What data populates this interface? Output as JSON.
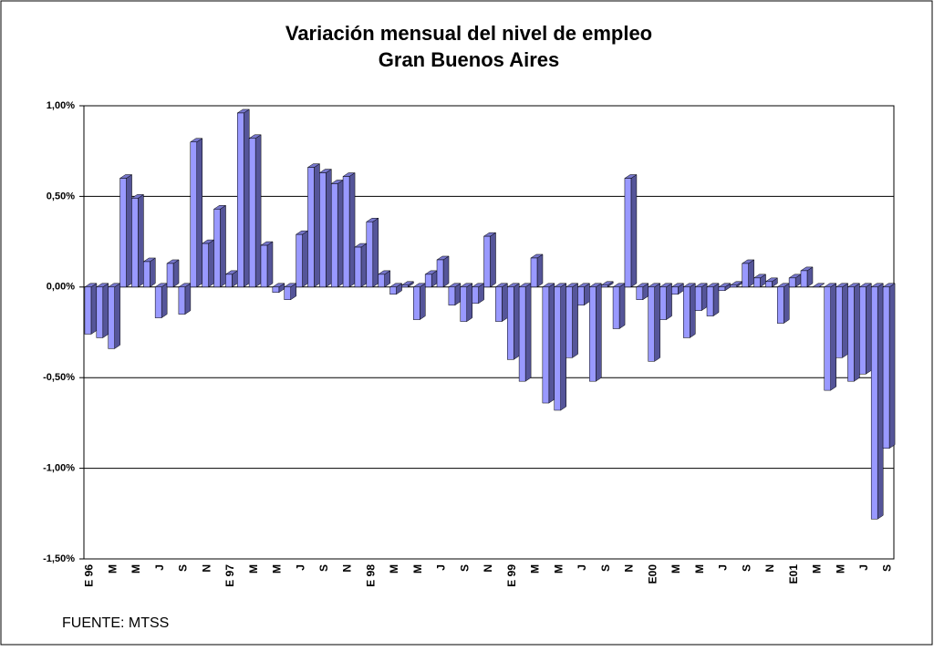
{
  "chart_data": {
    "type": "bar",
    "title": "Variación mensual del nivel de empleo",
    "subtitle": "Gran Buenos Aires",
    "source": "FUENTE: MTSS",
    "categories": [
      "E 96",
      null,
      "M",
      null,
      "M",
      null,
      "J",
      null,
      "S",
      null,
      "N",
      null,
      "E 97",
      null,
      "M",
      null,
      "M",
      null,
      "J",
      null,
      "S",
      null,
      "N",
      null,
      "E 98",
      null,
      "M",
      null,
      "M",
      null,
      "J",
      null,
      "S",
      null,
      "N",
      null,
      "E 99",
      null,
      "M",
      null,
      "M",
      null,
      "J",
      null,
      "S",
      null,
      "N",
      null,
      "E00",
      null,
      "M",
      null,
      "M",
      null,
      "J",
      null,
      "S",
      null,
      "N",
      null,
      "E01",
      null,
      "M",
      null,
      "M",
      null,
      "J",
      null,
      "S"
    ],
    "values": [
      -0.26,
      -0.28,
      -0.34,
      0.6,
      0.49,
      0.14,
      -0.17,
      0.13,
      -0.15,
      0.8,
      0.24,
      0.43,
      0.07,
      0.96,
      0.82,
      0.23,
      -0.03,
      -0.07,
      0.29,
      0.66,
      0.63,
      0.57,
      0.61,
      0.22,
      0.36,
      0.07,
      -0.04,
      0.01,
      -0.18,
      0.07,
      0.15,
      -0.1,
      -0.19,
      -0.09,
      0.28,
      -0.19,
      -0.4,
      -0.52,
      0.16,
      -0.64,
      -0.68,
      -0.39,
      -0.1,
      -0.52,
      0.01,
      -0.23,
      0.6,
      -0.07,
      -0.41,
      -0.18,
      -0.04,
      -0.28,
      -0.13,
      -0.16,
      -0.02,
      0.01,
      0.13,
      0.05,
      0.03,
      -0.2,
      0.05,
      0.09,
      0.0,
      -0.57,
      -0.39,
      -0.52,
      -0.48,
      -1.28,
      -0.89
    ],
    "color": "#9999ff",
    "ylim": [
      -1.5,
      1.0
    ],
    "yticks": [
      {
        "value": -1.5,
        "label": "-1,50%"
      },
      {
        "value": -1.0,
        "label": "-1,00%"
      },
      {
        "value": -0.5,
        "label": "-0,50%"
      },
      {
        "value": 0,
        "label": "0,00%"
      },
      {
        "value": 0.5,
        "label": "0,50%"
      },
      {
        "value": 1.0,
        "label": "1,00%"
      }
    ],
    "grid": true
  }
}
